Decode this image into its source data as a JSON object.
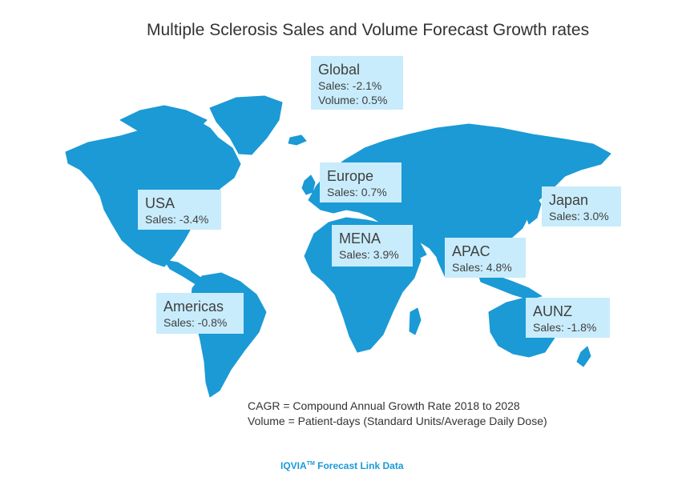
{
  "title": "Multiple Sclerosis Sales and Volume Forecast Growth rates",
  "colors": {
    "land": "#1b9ad6",
    "label_fill": "#c8ecfb",
    "source_text": "#1a9ad6"
  },
  "regions": {
    "global": {
      "name": "Global",
      "sales": "Sales: -2.1%",
      "volume": "Volume: 0.5%"
    },
    "usa": {
      "name": "USA",
      "sales": "Sales: -3.4%"
    },
    "europe": {
      "name": "Europe",
      "sales": "Sales: 0.7%"
    },
    "japan": {
      "name": "Japan",
      "sales": "Sales: 3.0%"
    },
    "mena": {
      "name": "MENA",
      "sales": "Sales: 3.9%"
    },
    "apac": {
      "name": "APAC",
      "sales": "Sales: 4.8%"
    },
    "americas": {
      "name": "Americas",
      "sales": "Sales: -0.8%"
    },
    "aunz": {
      "name": "AUNZ",
      "sales": "Sales: -1.8%"
    }
  },
  "footnote": {
    "line1": "CAGR = Compound Annual Growth Rate 2018 to 2028",
    "line2": "Volume = Patient-days (Standard Units/Average Daily Dose)"
  },
  "source": {
    "brand": "IQVIA",
    "trademark": "TM",
    "text": "Forecast Link Data"
  }
}
